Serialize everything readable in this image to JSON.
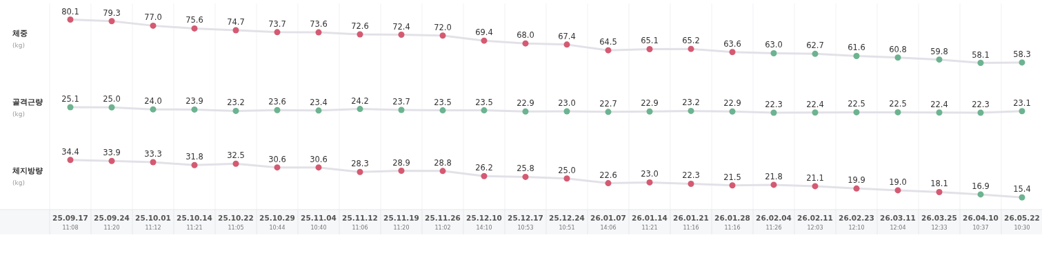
{
  "chart_data": [
    {
      "type": "line",
      "title": "체중",
      "subtitle": "(kg)",
      "tick_labels": false,
      "grid": "x",
      "marker": "circle",
      "categories": [
        null,
        null,
        null,
        null,
        null,
        null,
        null,
        null,
        null,
        null,
        null,
        null,
        null,
        null,
        null,
        null,
        null,
        null,
        null,
        null,
        null,
        null,
        null,
        null
      ],
      "series": [
        {
          "color": "#e2e1e8",
          "values": [
            80.1,
            79.3,
            77.0,
            75.6,
            74.7,
            73.7,
            73.6,
            72.6,
            72.4,
            72.0,
            69.4,
            68.0,
            67.4,
            64.5,
            65.1,
            65.2,
            63.6,
            63.0,
            62.7,
            61.6,
            60.8,
            59.8,
            58.1,
            58.3
          ],
          "value_labels": [
            "80.1",
            "79.3",
            "77.0",
            "75.6",
            "74.7",
            "73.7",
            "73.6",
            "72.6",
            "72.4",
            "72.0",
            "69.4",
            "68.0",
            "67.4",
            "64.5",
            "65.1",
            "65.2",
            "63.6",
            "63.0",
            "62.7",
            "61.6",
            "60.8",
            "59.8",
            "58.1",
            "58.3"
          ],
          "colors": [
            "#d45a72",
            "#d45a72",
            "#d45a72",
            "#d45a72",
            "#d45a72",
            "#d45a72",
            "#d45a72",
            "#d45a72",
            "#d45a72",
            "#d45a72",
            "#d45a72",
            "#d45a72",
            "#d45a72",
            "#d45a72",
            "#d45a72",
            "#d45a72",
            "#d45a72",
            "#6cb38f",
            "#6cb38f",
            "#6cb38f",
            "#6cb38f",
            "#6cb38f",
            "#6cb38f",
            "#6cb38f"
          ]
        }
      ]
    },
    {
      "type": "line",
      "title": "골격근량",
      "subtitle": "(kg)",
      "tick_labels": false,
      "grid": "x",
      "marker": "circle",
      "categories": [
        null,
        null,
        null,
        null,
        null,
        null,
        null,
        null,
        null,
        null,
        null,
        null,
        null,
        null,
        null,
        null,
        null,
        null,
        null,
        null,
        null,
        null,
        null,
        null
      ],
      "series": [
        {
          "color": "#e2e1e8",
          "values": [
            25.1,
            25.0,
            24.0,
            23.9,
            23.2,
            23.6,
            23.4,
            24.2,
            23.7,
            23.5,
            23.5,
            22.9,
            23.0,
            22.7,
            22.9,
            23.2,
            22.9,
            22.3,
            22.4,
            22.5,
            22.5,
            22.4,
            22.3,
            23.1
          ],
          "value_labels": [
            "25.1",
            "25.0",
            "24.0",
            "23.9",
            "23.2",
            "23.6",
            "23.4",
            "24.2",
            "23.7",
            "23.5",
            "23.5",
            "22.9",
            "23.0",
            "22.7",
            "22.9",
            "23.2",
            "22.9",
            "22.3",
            "22.4",
            "22.5",
            "22.5",
            "22.4",
            "22.3",
            "23.1"
          ],
          "colors": [
            "#6cb38f",
            "#6cb38f",
            "#6cb38f",
            "#6cb38f",
            "#6cb38f",
            "#6cb38f",
            "#6cb38f",
            "#6cb38f",
            "#6cb38f",
            "#6cb38f",
            "#6cb38f",
            "#6cb38f",
            "#6cb38f",
            "#6cb38f",
            "#6cb38f",
            "#6cb38f",
            "#6cb38f",
            "#6cb38f",
            "#6cb38f",
            "#6cb38f",
            "#6cb38f",
            "#6cb38f",
            "#6cb38f",
            "#6cb38f"
          ]
        }
      ]
    },
    {
      "type": "line",
      "title": "체지방량",
      "subtitle": "(kg)",
      "tick_labels": "x",
      "grid": "x",
      "marker": "circle",
      "categories": [
        "25.09.17 11:08",
        "25.09.24 11:20",
        "25.10.01 11:12",
        "25.10.14 11:21",
        "25.10.22 11:05",
        "25.10.29 10:44",
        "25.11.04 10:40",
        "25.11.12 11:06",
        "25.11.19 11:20",
        "25.11.26 11:02",
        "25.12.10 14:10",
        "25.12.17 10:53",
        "25.12.24 10:51",
        "26.01.07 14:06",
        "26.01.14 11:21",
        "26.01.21 11:16",
        "26.01.28 11:16",
        "26.02.04 11:26",
        "26.02.11 12:03",
        "26.02.23 12:10",
        "26.03.11 12:04",
        "26.03.25 12:33",
        "26.04.10 10:37",
        "26.05.22 10:30"
      ],
      "series": [
        {
          "color": "#e2e1e8",
          "values": [
            34.4,
            33.9,
            33.3,
            31.8,
            32.5,
            30.6,
            30.6,
            28.3,
            28.9,
            28.8,
            26.2,
            25.8,
            25.0,
            22.6,
            23.0,
            22.3,
            21.5,
            21.8,
            21.1,
            19.9,
            19.0,
            18.1,
            16.9,
            15.4
          ],
          "value_labels": [
            "34.4",
            "33.9",
            "33.3",
            "31.8",
            "32.5",
            "30.6",
            "30.6",
            "28.3",
            "28.9",
            "28.8",
            "26.2",
            "25.8",
            "25.0",
            "22.6",
            "23.0",
            "22.3",
            "21.5",
            "21.8",
            "21.1",
            "19.9",
            "19.0",
            "18.1",
            "16.9",
            "15.4"
          ],
          "colors": [
            "#d45a72",
            "#d45a72",
            "#d45a72",
            "#d45a72",
            "#d45a72",
            "#d45a72",
            "#d45a72",
            "#d45a72",
            "#d45a72",
            "#d45a72",
            "#d45a72",
            "#d45a72",
            "#d45a72",
            "#d45a72",
            "#d45a72",
            "#d45a72",
            "#d45a72",
            "#d45a72",
            "#d45a72",
            "#d45a72",
            "#d45a72",
            "#d45a72",
            "#6cb38f",
            "#6cb38f"
          ]
        }
      ]
    }
  ]
}
